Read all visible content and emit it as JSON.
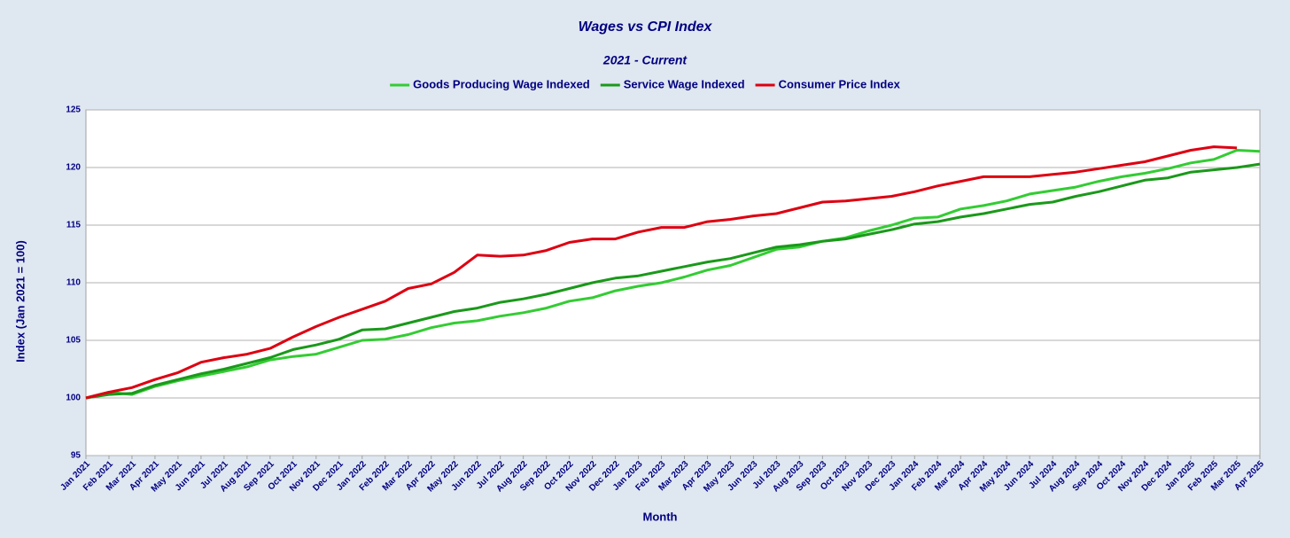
{
  "chart_data": {
    "type": "line",
    "title": "Wages vs CPI Index",
    "subtitle": "2021 - Current",
    "x_label": "Month",
    "y_label": "Index (Jan 2021 = 100)",
    "categories": [
      "Jan 2021",
      "Feb 2021",
      "Mar 2021",
      "Apr 2021",
      "May 2021",
      "Jun 2021",
      "Jul 2021",
      "Aug 2021",
      "Sep 2021",
      "Oct 2021",
      "Nov 2021",
      "Dec 2021",
      "Jan 2022",
      "Feb 2022",
      "Mar 2022",
      "Apr 2022",
      "May 2022",
      "Jun 2022",
      "Jul 2022",
      "Aug 2022",
      "Sep 2022",
      "Oct 2022",
      "Nov 2022",
      "Dec 2022",
      "Jan 2023",
      "Feb 2023",
      "Mar 2023",
      "Apr 2023",
      "May 2023",
      "Jun 2023",
      "Jul 2023",
      "Aug 2023",
      "Sep 2023",
      "Oct 2023",
      "Nov 2023",
      "Dec 2023",
      "Jan 2024",
      "Feb 2024",
      "Mar 2024",
      "Apr 2024",
      "May 2024",
      "Jun 2024",
      "Jul 2024",
      "Aug 2024",
      "Sep 2024",
      "Oct 2024",
      "Nov 2024",
      "Dec 2024",
      "Jan 2025",
      "Feb 2025",
      "Mar 2025",
      "Apr 2025"
    ],
    "series": [
      {
        "name": "Goods Producing Wage Indexed",
        "color": "#33cc33",
        "values": [
          100,
          100.5,
          100.3,
          101.0,
          101.5,
          101.9,
          102.3,
          102.7,
          103.3,
          103.6,
          103.8,
          104.4,
          105.0,
          105.1,
          105.5,
          106.1,
          106.5,
          106.7,
          107.1,
          107.4,
          107.8,
          108.4,
          108.7,
          109.3,
          109.7,
          110.0,
          110.5,
          111.1,
          111.5,
          112.2,
          112.9,
          113.1,
          113.6,
          113.9,
          114.5,
          115.0,
          115.6,
          115.7,
          116.4,
          116.7,
          117.1,
          117.7,
          118.0,
          118.3,
          118.8,
          119.2,
          119.5,
          119.9,
          120.4,
          120.7,
          121.5,
          121.4
        ]
      },
      {
        "name": "Service Wage Indexed",
        "color": "#1a991a",
        "values": [
          100,
          100.3,
          100.4,
          101.1,
          101.6,
          102.1,
          102.5,
          103.0,
          103.5,
          104.2,
          104.6,
          105.1,
          105.9,
          106.0,
          106.5,
          107.0,
          107.5,
          107.8,
          108.3,
          108.6,
          109.0,
          109.5,
          110.0,
          110.4,
          110.6,
          111.0,
          111.4,
          111.8,
          112.1,
          112.6,
          113.1,
          113.3,
          113.6,
          113.8,
          114.2,
          114.6,
          115.1,
          115.3,
          115.7,
          116.0,
          116.4,
          116.8,
          117.0,
          117.5,
          117.9,
          118.4,
          118.9,
          119.1,
          119.6,
          119.8,
          120.0,
          120.3
        ]
      },
      {
        "name": "Consumer Price Index",
        "color": "#dd0011",
        "values": [
          100,
          100.5,
          100.9,
          101.6,
          102.2,
          103.1,
          103.5,
          103.8,
          104.3,
          105.3,
          106.2,
          107.0,
          107.7,
          108.4,
          109.5,
          109.9,
          110.9,
          112.4,
          112.3,
          112.4,
          112.8,
          113.5,
          113.8,
          113.8,
          114.4,
          114.8,
          114.8,
          115.3,
          115.5,
          115.8,
          116.0,
          116.5,
          117.0,
          117.1,
          117.3,
          117.5,
          117.9,
          118.4,
          118.8,
          119.2,
          119.2,
          119.2,
          119.4,
          119.6,
          119.9,
          120.2,
          120.5,
          121.0,
          121.5,
          121.8,
          121.7,
          null
        ]
      }
    ],
    "ylim": [
      95,
      125
    ],
    "yticks": [
      95,
      100,
      105,
      110,
      115,
      120,
      125
    ],
    "grid": true,
    "legend": "top"
  }
}
